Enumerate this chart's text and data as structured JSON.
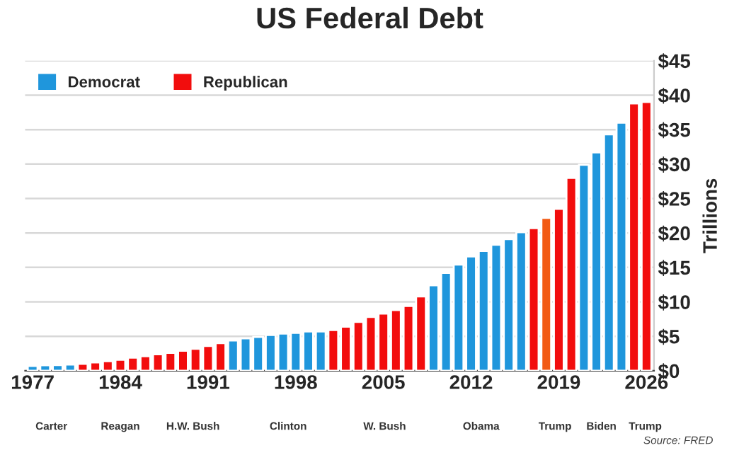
{
  "chart_data": {
    "type": "bar",
    "title": "US Federal Debt",
    "ylabel": "Trillions",
    "categories": [
      "1977",
      null,
      null,
      null,
      null,
      null,
      null,
      "1984",
      null,
      null,
      null,
      null,
      null,
      null,
      "1991",
      null,
      null,
      null,
      null,
      null,
      null,
      "1998",
      null,
      null,
      null,
      null,
      null,
      null,
      "2005",
      null,
      null,
      null,
      null,
      null,
      null,
      "2012",
      null,
      null,
      null,
      null,
      null,
      null,
      "2019",
      null,
      null,
      null,
      null,
      null,
      null,
      "2026"
    ],
    "series": [
      {
        "name": "Democrat",
        "color": "#1f96dc",
        "values": [
          0.7,
          0.8,
          0.83,
          0.9,
          null,
          null,
          null,
          null,
          null,
          null,
          null,
          null,
          null,
          null,
          null,
          null,
          4.4,
          4.7,
          4.9,
          5.2,
          5.4,
          5.5,
          5.7,
          5.7,
          null,
          null,
          null,
          null,
          null,
          null,
          null,
          null,
          12.4,
          14.2,
          15.4,
          16.6,
          17.4,
          18.3,
          19.1,
          20.1,
          null,
          null,
          null,
          null,
          29.9,
          31.7,
          34.3,
          36.0,
          null,
          null
        ]
      },
      {
        "name": "Republican",
        "color": "#f20d0d",
        "colors": [
          null,
          null,
          null,
          null,
          "#f20d0d",
          "#f20d0d",
          "#f20d0d",
          "#f20d0d",
          "#f20d0d",
          "#f20d0d",
          "#f20d0d",
          "#f20d0d",
          "#f20d0d",
          "#f20d0d",
          "#f20d0d",
          "#f20d0d",
          null,
          null,
          null,
          null,
          null,
          null,
          null,
          null,
          "#f20d0d",
          "#f20d0d",
          "#f20d0d",
          "#f20d0d",
          "#f20d0d",
          "#f20d0d",
          "#f20d0d",
          "#f20d0d",
          null,
          null,
          null,
          null,
          null,
          null,
          null,
          null,
          "#f20d0d",
          "#f25a14",
          "#f20d0d",
          "#f20d0d",
          null,
          null,
          null,
          null,
          "#f20d0d",
          "#f20d0d"
        ],
        "values": [
          null,
          null,
          null,
          null,
          1.0,
          1.2,
          1.4,
          1.6,
          1.9,
          2.1,
          2.4,
          2.6,
          2.9,
          3.2,
          3.6,
          4.0,
          null,
          null,
          null,
          null,
          null,
          null,
          null,
          null,
          5.9,
          6.4,
          7.1,
          7.8,
          8.3,
          8.8,
          9.4,
          10.8,
          null,
          null,
          null,
          null,
          null,
          null,
          null,
          null,
          20.7,
          22.2,
          23.5,
          28.0,
          null,
          null,
          null,
          null,
          38.8,
          39.0
        ]
      }
    ],
    "ylim": [
      0,
      45
    ],
    "yticks": [
      {
        "value": 0,
        "label": "$0"
      },
      {
        "value": 5,
        "label": "$5"
      },
      {
        "value": 10,
        "label": "$10"
      },
      {
        "value": 15,
        "label": "$15"
      },
      {
        "value": 20,
        "label": "$20"
      },
      {
        "value": 25,
        "label": "$25"
      },
      {
        "value": 30,
        "label": "$30"
      },
      {
        "value": 35,
        "label": "$35"
      },
      {
        "value": 40,
        "label": "$40"
      },
      {
        "value": 45,
        "label": "$45"
      }
    ],
    "grid": "y",
    "legend": "top left",
    "annotations": [
      "Carter",
      "Reagan",
      "H.W. Bush",
      "Clinton",
      "W. Bush",
      "Obama",
      "Trump",
      "Biden",
      "Trump",
      "Source: FRED"
    ]
  }
}
